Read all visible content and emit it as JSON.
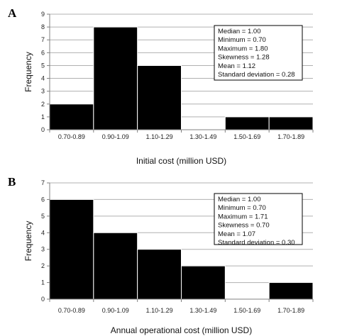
{
  "chart_data": [
    {
      "type": "bar",
      "panel": "A",
      "categories": [
        "0.70-0.89",
        "0.90-1.09",
        "1.10-1.29",
        "1.30-1.49",
        "1.50-1.69",
        "1.70-1.89"
      ],
      "values": [
        2,
        8,
        5,
        0,
        1,
        1
      ],
      "xlabel": "Initial cost (million USD)",
      "ylabel": "Frequency",
      "ylim": [
        0,
        9
      ],
      "yticks": [
        0,
        1,
        2,
        3,
        4,
        5,
        6,
        7,
        8,
        9
      ],
      "grid": true,
      "stats": [
        "Median = 1.00",
        "Minimum = 0.70",
        "Maximum = 1.80",
        "Skewness = 1.28",
        "Mean = 1.12",
        "Standard deviation = 0.28"
      ]
    },
    {
      "type": "bar",
      "panel": "B",
      "categories": [
        "0.70-0.89",
        "0.90-1.09",
        "1.10-1.29",
        "1.30-1.49",
        "1.50-1.69",
        "1.70-1.89"
      ],
      "values": [
        6,
        4,
        3,
        2,
        0,
        1
      ],
      "xlabel": "Annual operational cost (million USD)",
      "ylabel": "Frequency",
      "ylim": [
        0,
        7
      ],
      "yticks": [
        0,
        1,
        2,
        3,
        4,
        5,
        6,
        7
      ],
      "grid": true,
      "stats": [
        "Median = 1.00",
        "Minimum = 0.70",
        "Maximum = 1.71",
        "Skewness = 0.70",
        "Mean = 1.07",
        "Standard deviation = 0.30"
      ]
    }
  ],
  "colors": {
    "bar": "#000000",
    "grid": "#b0b0b0",
    "axis": "#808080"
  }
}
